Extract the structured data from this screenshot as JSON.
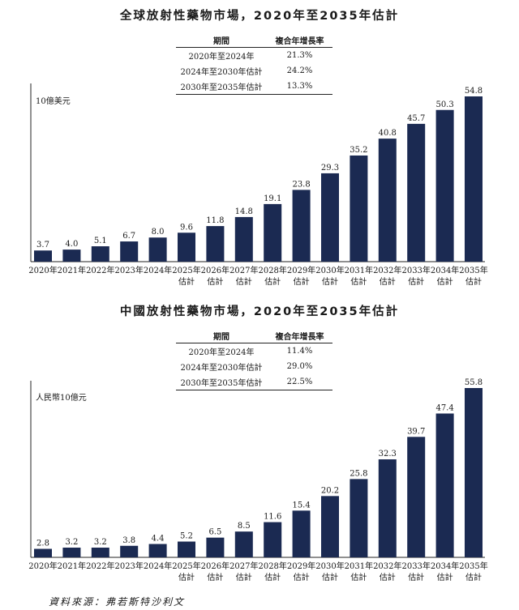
{
  "source_note": "資料來源：弗若斯特沙利文",
  "chart_data": [
    {
      "type": "bar",
      "title": "全球放射性藥物市場，2020年至2035年估計",
      "unit_label": "10億美元",
      "xlabel": "",
      "ylabel": "10億美元",
      "ylim": [
        0,
        55
      ],
      "categories": [
        "2020年",
        "2021年",
        "2022年",
        "2023年",
        "2024年",
        "2025年",
        "2026年",
        "2027年",
        "2028年",
        "2029年",
        "2030年",
        "2031年",
        "2032年",
        "2033年",
        "2034年",
        "2035年"
      ],
      "category_sublabels": [
        "",
        "",
        "",
        "",
        "",
        "估計",
        "估計",
        "估計",
        "估計",
        "估計",
        "估計",
        "估計",
        "估計",
        "估計",
        "估計",
        "估計"
      ],
      "values": [
        3.7,
        4.0,
        5.1,
        6.7,
        8.0,
        9.6,
        11.8,
        14.8,
        19.1,
        23.8,
        29.3,
        35.2,
        40.8,
        45.7,
        50.3,
        54.8
      ],
      "value_labels": [
        "3.7",
        "4.0",
        "5.1",
        "6.7",
        "8.0",
        "9.6",
        "11.8",
        "14.8",
        "19.1",
        "23.8",
        "29.3",
        "35.2",
        "40.8",
        "45.7",
        "50.3",
        "54.8"
      ],
      "bar_color": "#1b2a52",
      "growth_table": {
        "headers": [
          "期間",
          "複合年增長率"
        ],
        "rows": [
          {
            "period": "2020年至2024年",
            "cagr": "21.3%"
          },
          {
            "period": "2024年至2030年估計",
            "cagr": "24.2%"
          },
          {
            "period": "2030年至2035年估計",
            "cagr": "13.3%"
          }
        ]
      }
    },
    {
      "type": "bar",
      "title": "中國放射性藥物市場，2020年至2035年估計",
      "unit_label": "人民幣10億元",
      "xlabel": "",
      "ylabel": "人民幣10億元",
      "ylim": [
        0,
        56
      ],
      "categories": [
        "2020年",
        "2021年",
        "2022年",
        "2023年",
        "2024年",
        "2025年",
        "2026年",
        "2027年",
        "2028年",
        "2029年",
        "2030年",
        "2031年",
        "2032年",
        "2033年",
        "2034年",
        "2035年"
      ],
      "category_sublabels": [
        "",
        "",
        "",
        "",
        "",
        "估計",
        "估計",
        "估計",
        "估計",
        "估計",
        "估計",
        "估計",
        "估計",
        "估計",
        "估計",
        "估計"
      ],
      "values": [
        2.8,
        3.2,
        3.2,
        3.8,
        4.4,
        5.2,
        6.5,
        8.5,
        11.6,
        15.4,
        20.2,
        25.8,
        32.3,
        39.7,
        47.4,
        55.8
      ],
      "value_labels": [
        "2.8",
        "3.2",
        "3.2",
        "3.8",
        "4.4",
        "5.2",
        "6.5",
        "8.5",
        "11.6",
        "15.4",
        "20.2",
        "25.8",
        "32.3",
        "39.7",
        "47.4",
        "55.8"
      ],
      "bar_color": "#1b2a52",
      "growth_table": {
        "headers": [
          "期間",
          "複合年增長率"
        ],
        "rows": [
          {
            "period": "2020年至2024年",
            "cagr": "11.4%"
          },
          {
            "period": "2024年至2030年估計",
            "cagr": "29.0%"
          },
          {
            "period": "2030年至2035年估計",
            "cagr": "22.5%"
          }
        ]
      }
    }
  ]
}
